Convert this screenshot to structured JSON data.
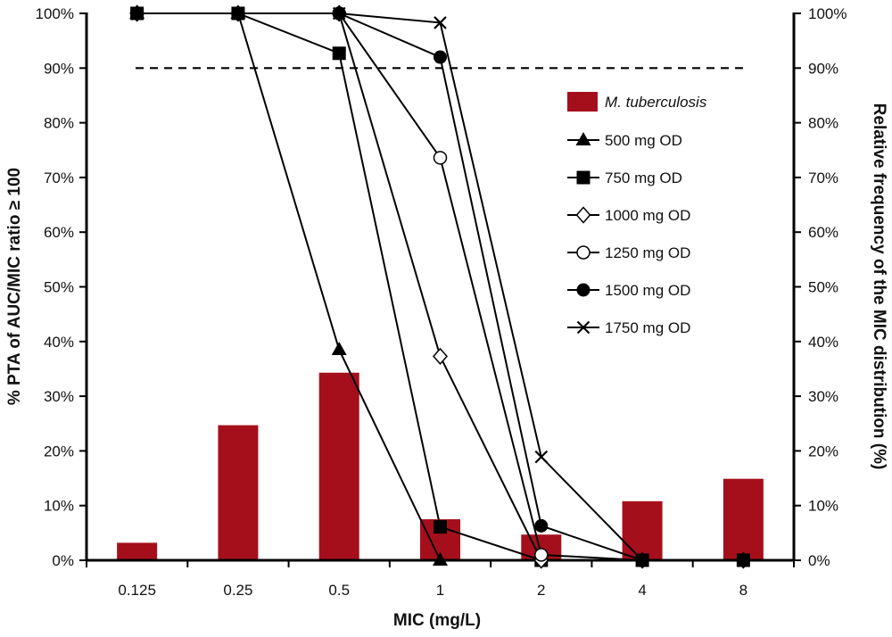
{
  "chart_data": {
    "type": "bar+line",
    "categories": [
      "0.125",
      "0.25",
      "0.5",
      "1",
      "2",
      "4",
      "8"
    ],
    "xlabel": "MIC (mg/L)",
    "ylabel_left": "% PTA of AUC/MIC ratio ≥ 100",
    "ylabel_right": "Relative frequency of the MIC distribution (%)",
    "ylim": [
      0,
      100
    ],
    "yticks": [
      "0%",
      "10%",
      "20%",
      "30%",
      "40%",
      "50%",
      "60%",
      "70%",
      "80%",
      "90%",
      "100%"
    ],
    "threshold": 90,
    "bars": {
      "name": "M. tuberculosis",
      "color": "#A50F1C",
      "values": [
        3.2,
        24.7,
        34.3,
        7.5,
        4.7,
        10.8,
        14.9
      ]
    },
    "series": [
      {
        "name": "500 mg OD",
        "marker": "triangle",
        "values": [
          100,
          100,
          38.5,
          0,
          null,
          null,
          null
        ]
      },
      {
        "name": "750 mg OD",
        "marker": "square",
        "values": [
          100,
          100,
          92.7,
          6.1,
          0,
          0,
          0
        ]
      },
      {
        "name": "1000 mg OD",
        "marker": "diamond-open",
        "values": [
          100,
          100,
          100,
          37.3,
          0,
          0,
          0
        ]
      },
      {
        "name": "1250 mg OD",
        "marker": "circle-open",
        "values": [
          100,
          100,
          100,
          73.6,
          1.0,
          0,
          0
        ]
      },
      {
        "name": "1500 mg OD",
        "marker": "circle",
        "values": [
          100,
          100,
          100,
          92.0,
          6.3,
          0,
          0
        ]
      },
      {
        "name": "1750 mg OD",
        "marker": "x",
        "values": [
          100,
          100,
          100,
          98.3,
          18.9,
          0,
          0
        ]
      }
    ],
    "legend_position": "upper-right"
  }
}
